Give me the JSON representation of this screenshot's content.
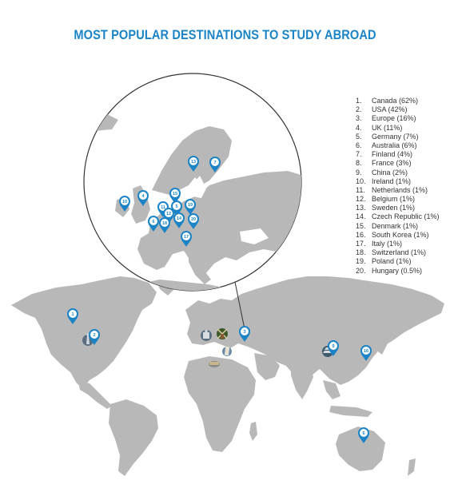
{
  "title": "MOST POPULAR DESTINATIONS TO STUDY ABROAD",
  "colors": {
    "accent": "#1a84c6",
    "land": "#b8b8b8",
    "pin": "#1a84c6",
    "text": "#333333"
  },
  "legend": [
    {
      "num": "1.",
      "label": "Canada (62%)"
    },
    {
      "num": "2.",
      "label": "USA (42%)"
    },
    {
      "num": "3.",
      "label": "Europe (16%)"
    },
    {
      "num": "4.",
      "label": "UK (11%)"
    },
    {
      "num": "5.",
      "label": "Germany (7%)"
    },
    {
      "num": "6.",
      "label": "Australia (6%)"
    },
    {
      "num": "7.",
      "label": "Finland (4%)"
    },
    {
      "num": "8.",
      "label": "France (3%)"
    },
    {
      "num": "9.",
      "label": "China (2%)"
    },
    {
      "num": "10.",
      "label": "Ireland (1%)"
    },
    {
      "num": "11.",
      "label": "Netherlands (1%)"
    },
    {
      "num": "12.",
      "label": "Belgium (1%)"
    },
    {
      "num": "13.",
      "label": "Sweden (1%)"
    },
    {
      "num": "14.",
      "label": "Czech Republic (1%)"
    },
    {
      "num": "15.",
      "label": "Denmark (1%)"
    },
    {
      "num": "16.",
      "label": "South Korea (1%)"
    },
    {
      "num": "17.",
      "label": "Italy (1%)"
    },
    {
      "num": "18.",
      "label": "Switzerland (1%)"
    },
    {
      "num": "19.",
      "label": "Poland (1%)"
    },
    {
      "num": "20.",
      "label": "Hungary (0.5%)"
    }
  ],
  "pins": {
    "world": [
      {
        "n": "1"
      },
      {
        "n": "2"
      },
      {
        "n": "3"
      },
      {
        "n": "9"
      },
      {
        "n": "16"
      },
      {
        "n": "6"
      }
    ],
    "europe_inset": [
      {
        "n": "13"
      },
      {
        "n": "7"
      },
      {
        "n": "10"
      },
      {
        "n": "4"
      },
      {
        "n": "15"
      },
      {
        "n": "11"
      },
      {
        "n": "5"
      },
      {
        "n": "19"
      },
      {
        "n": "12"
      },
      {
        "n": "14"
      },
      {
        "n": "20"
      },
      {
        "n": "6"
      },
      {
        "n": "18"
      },
      {
        "n": "17"
      }
    ]
  },
  "landmark_icons": [
    "windmill-icon",
    "leaning-tower-icon",
    "castle-icon",
    "colosseum-icon",
    "liberty-icon",
    "pagoda-icon"
  ]
}
